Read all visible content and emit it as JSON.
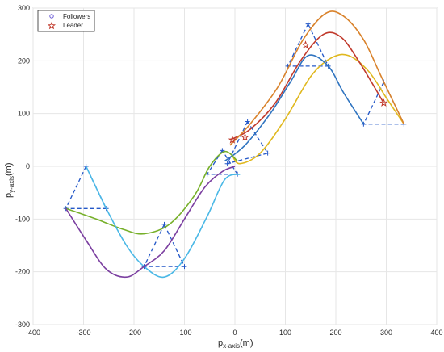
{
  "chart_data": {
    "type": "line",
    "xlabel": {
      "main": "p",
      "sub": "x-axis",
      "unit": "(m)"
    },
    "ylabel": {
      "main": "p",
      "sub": "y-axis",
      "unit": "(m)"
    },
    "xlim": [
      -400,
      400
    ],
    "ylim": [
      -300,
      300
    ],
    "xticks": [
      -400,
      -300,
      -200,
      -100,
      0,
      100,
      200,
      300,
      400
    ],
    "yticks": [
      -300,
      -200,
      -100,
      0,
      100,
      200,
      300
    ],
    "xtick_labels": [
      "-400",
      "-300",
      "-200",
      "-100",
      "0",
      "100",
      "200",
      "300",
      "400"
    ],
    "ytick_labels": [
      "-300",
      "-200",
      "-100",
      "0",
      "100",
      "200",
      "300"
    ],
    "grid": true,
    "legend": {
      "placement": "top-left",
      "entries": [
        {
          "label": "Followers",
          "marker": "circle",
          "color": "#6b5bd6"
        },
        {
          "label": "Leader",
          "marker": "star",
          "color": "#c0392b"
        }
      ]
    },
    "series": [
      {
        "color": "#e0b81f",
        "points": [
          [
            -5,
            20
          ],
          [
            10,
            5
          ],
          [
            50,
            25
          ],
          [
            100,
            90
          ],
          [
            150,
            170
          ],
          [
            190,
            205
          ],
          [
            225,
            210
          ],
          [
            265,
            180
          ],
          [
            300,
            130
          ],
          [
            335,
            80
          ]
        ]
      },
      {
        "color": "#2f74c0",
        "points": [
          [
            -20,
            10
          ],
          [
            20,
            40
          ],
          [
            70,
            100
          ],
          [
            110,
            160
          ],
          [
            145,
            210
          ],
          [
            185,
            190
          ],
          [
            215,
            140
          ],
          [
            255,
            80
          ]
        ]
      },
      {
        "color": "#c0392b",
        "points": [
          [
            -10,
            50
          ],
          [
            30,
            70
          ],
          [
            80,
            120
          ],
          [
            130,
            200
          ],
          [
            175,
            250
          ],
          [
            210,
            245
          ],
          [
            245,
            200
          ],
          [
            295,
            120
          ]
        ]
      },
      {
        "color": "#d9822b",
        "points": [
          [
            -10,
            40
          ],
          [
            30,
            80
          ],
          [
            85,
            150
          ],
          [
            135,
            240
          ],
          [
            180,
            290
          ],
          [
            215,
            285
          ],
          [
            255,
            240
          ],
          [
            290,
            170
          ],
          [
            335,
            80
          ]
        ]
      },
      {
        "color": "#77b02a",
        "points": [
          [
            -335,
            -80
          ],
          [
            -275,
            -100
          ],
          [
            -220,
            -120
          ],
          [
            -180,
            -128
          ],
          [
            -130,
            -110
          ],
          [
            -80,
            -55
          ],
          [
            -50,
            0
          ],
          [
            -20,
            28
          ],
          [
            5,
            10
          ]
        ]
      },
      {
        "color": "#4ab8e6",
        "points": [
          [
            -295,
            0
          ],
          [
            -255,
            -80
          ],
          [
            -215,
            -150
          ],
          [
            -180,
            -190
          ],
          [
            -140,
            -210
          ],
          [
            -100,
            -175
          ],
          [
            -55,
            -95
          ],
          [
            -20,
            -25
          ],
          [
            10,
            -15
          ]
        ]
      },
      {
        "color": "#7b3fa0",
        "points": [
          [
            -335,
            -80
          ],
          [
            -295,
            -140
          ],
          [
            -255,
            -195
          ],
          [
            -215,
            -210
          ],
          [
            -180,
            -190
          ],
          [
            -140,
            -160
          ],
          [
            -100,
            -100
          ],
          [
            -60,
            -40
          ],
          [
            -25,
            -10
          ],
          [
            0,
            0
          ]
        ]
      }
    ],
    "formation_triangles": [
      [
        [
          -295,
          0
        ],
        [
          -335,
          -80
        ],
        [
          -255,
          -80
        ]
      ],
      [
        [
          -140,
          -110
        ],
        [
          -180,
          -190
        ],
        [
          -100,
          -190
        ]
      ],
      [
        [
          -25,
          30
        ],
        [
          -55,
          -15
        ],
        [
          5,
          -15
        ]
      ],
      [
        [
          25,
          85
        ],
        [
          -15,
          5
        ],
        [
          65,
          25
        ]
      ],
      [
        [
          145,
          270
        ],
        [
          105,
          190
        ],
        [
          185,
          190
        ]
      ],
      [
        [
          295,
          160
        ],
        [
          255,
          80
        ],
        [
          335,
          80
        ]
      ]
    ],
    "leader_points": [
      [
        -5,
        50
      ],
      [
        20,
        55
      ],
      [
        140,
        230
      ],
      [
        295,
        120
      ]
    ]
  }
}
